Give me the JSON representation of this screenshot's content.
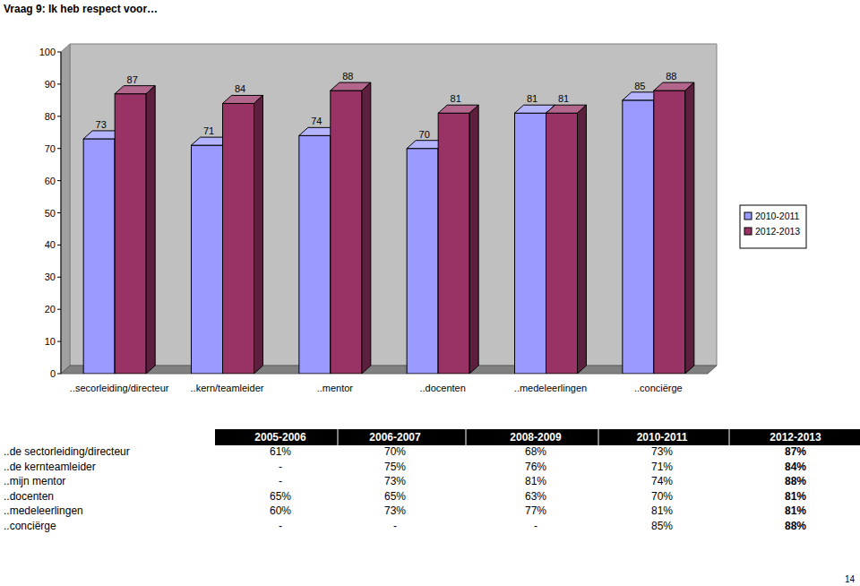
{
  "chart_data": {
    "type": "bar",
    "title": "Vraag 9: Ik heb respect voor…",
    "categories": [
      "..secorleiding/directeur",
      "..kern/teamleider",
      "..mentor",
      "..docenten",
      "..medeleerlingen",
      "..conciërge"
    ],
    "series": [
      {
        "name": "2010-2011",
        "color": "#9999ff",
        "values": [
          73,
          71,
          74,
          70,
          81,
          85
        ]
      },
      {
        "name": "2012-2013",
        "color": "#993366",
        "values": [
          87,
          84,
          88,
          81,
          81,
          88
        ]
      }
    ],
    "ylim": [
      0,
      100
    ],
    "yticks": [
      0,
      10,
      20,
      30,
      40,
      50,
      60,
      70,
      80,
      90,
      100
    ],
    "grid": false,
    "legend": "right",
    "data_labels": true
  },
  "table": {
    "columns": [
      "2005-2006",
      "2006-2007",
      "2008-2009",
      "2010-2011",
      "2012-2013"
    ],
    "rows": [
      {
        "label": "..de sectorleiding/directeur",
        "cells": [
          "61%",
          "70%",
          "68%",
          "73%",
          "87%"
        ]
      },
      {
        "label": "..de kernteamleider",
        "cells": [
          "-",
          "75%",
          "76%",
          "71%",
          "84%"
        ]
      },
      {
        "label": "..mijn mentor",
        "cells": [
          "-",
          "73%",
          "81%",
          "74%",
          "88%"
        ]
      },
      {
        "label": "..docenten",
        "cells": [
          "65%",
          "65%",
          "63%",
          "70%",
          "81%"
        ]
      },
      {
        "label": "..medeleerlingen",
        "cells": [
          "60%",
          "73%",
          "77%",
          "81%",
          "81%"
        ]
      },
      {
        "label": "..conciërge",
        "cells": [
          "-",
          "-",
          "-",
          "85%",
          "88%"
        ]
      }
    ]
  },
  "page_number": "14"
}
